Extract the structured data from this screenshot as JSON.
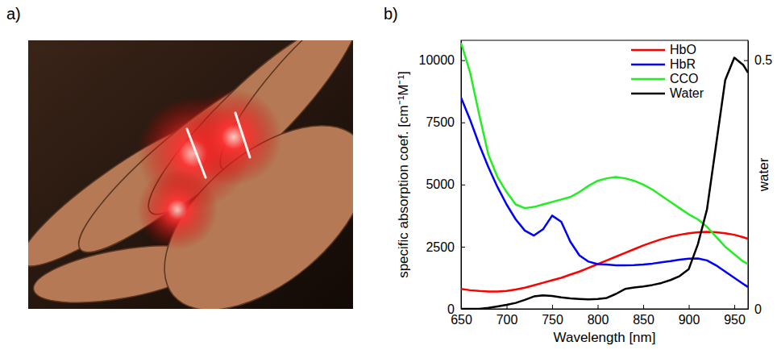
{
  "photo": {
    "label": "a)"
  },
  "chart_data": {
    "type": "line",
    "panel_label": "b)",
    "x_label": "Wavelength [nm]",
    "y_label": "specific absorption coef. [cm⁻¹M⁻¹]",
    "y2_label": "water",
    "x": [
      650,
      660,
      670,
      680,
      690,
      700,
      710,
      720,
      730,
      740,
      750,
      760,
      770,
      780,
      790,
      800,
      810,
      820,
      830,
      840,
      850,
      860,
      870,
      880,
      890,
      900,
      910,
      920,
      930,
      940,
      950,
      960,
      965
    ],
    "xlim": [
      650,
      965
    ],
    "xticks": [
      650,
      700,
      750,
      800,
      850,
      900,
      950
    ],
    "ylim": [
      0,
      10800
    ],
    "yticks": [
      0,
      2500,
      5000,
      7500,
      10000
    ],
    "y2lim": [
      0,
      0.54
    ],
    "y2ticks": [
      0,
      0.5
    ],
    "legend": "upper right",
    "series": [
      {
        "name": "HbO",
        "color": "#ff0000",
        "values": [
          800,
          750,
          720,
          700,
          700,
          720,
          780,
          850,
          950,
          1050,
          1150,
          1250,
          1380,
          1500,
          1650,
          1800,
          1950,
          2100,
          2250,
          2400,
          2550,
          2680,
          2800,
          2900,
          2980,
          3040,
          3080,
          3100,
          3080,
          3040,
          2980,
          2880,
          2820
        ]
      },
      {
        "name": "HbR",
        "color": "#0000ff",
        "values": [
          8500,
          7600,
          6600,
          5700,
          4900,
          4200,
          3600,
          3150,
          2950,
          3200,
          3750,
          3500,
          2700,
          2150,
          1900,
          1800,
          1780,
          1750,
          1750,
          1760,
          1780,
          1820,
          1870,
          1920,
          1980,
          2020,
          2030,
          1950,
          1750,
          1500,
          1250,
          1000,
          880
        ]
      },
      {
        "name": "CCO",
        "color": "#22ee22",
        "values": [
          10700,
          9500,
          7800,
          6200,
          5300,
          4700,
          4200,
          4050,
          4100,
          4200,
          4300,
          4400,
          4500,
          4700,
          4950,
          5150,
          5250,
          5300,
          5250,
          5150,
          5000,
          4800,
          4550,
          4300,
          4050,
          3800,
          3600,
          3300,
          2900,
          2500,
          2200,
          1900,
          1800
        ]
      },
      {
        "name": "Water",
        "color": "#000000",
        "axis": "y2",
        "values": [
          0,
          0,
          0,
          0.002,
          0.005,
          0.008,
          0.012,
          0.018,
          0.025,
          0.027,
          0.026,
          0.023,
          0.021,
          0.02,
          0.019,
          0.02,
          0.022,
          0.03,
          0.04,
          0.043,
          0.045,
          0.048,
          0.052,
          0.058,
          0.066,
          0.08,
          0.13,
          0.2,
          0.33,
          0.46,
          0.505,
          0.49,
          0.475
        ]
      }
    ]
  }
}
